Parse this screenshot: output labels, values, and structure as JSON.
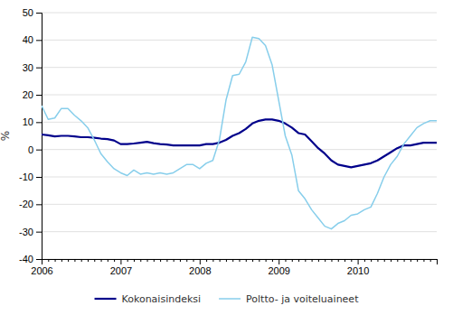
{
  "chart_data": {
    "type": "line",
    "ylabel": "%",
    "categories": [
      "2006",
      null,
      null,
      null,
      null,
      null,
      null,
      null,
      null,
      null,
      null,
      null,
      "2007",
      null,
      null,
      null,
      null,
      null,
      null,
      null,
      null,
      null,
      null,
      null,
      "2008",
      null,
      null,
      null,
      null,
      null,
      null,
      null,
      null,
      null,
      null,
      null,
      "2009",
      null,
      null,
      null,
      null,
      null,
      null,
      null,
      null,
      null,
      null,
      null,
      "2010",
      null,
      null,
      null,
      null,
      null,
      null,
      null,
      null,
      null,
      null,
      null,
      null
    ],
    "series": [
      {
        "name": "Kokonaisindeksi",
        "color": "#00008B",
        "values": [
          5.5,
          5.2,
          4.8,
          5.0,
          5.0,
          4.8,
          4.5,
          4.5,
          4.3,
          4.0,
          3.8,
          3.3,
          2.0,
          2.0,
          2.2,
          2.5,
          2.8,
          2.3,
          2.0,
          1.8,
          1.5,
          1.5,
          1.5,
          1.5,
          1.5,
          2.0,
          2.0,
          2.5,
          3.5,
          5.0,
          6.0,
          7.5,
          9.5,
          10.5,
          11.0,
          11.0,
          10.5,
          9.5,
          8.0,
          6.0,
          5.5,
          3.0,
          0.5,
          -1.5,
          -4.0,
          -5.5,
          -6.0,
          -6.5,
          -6.0,
          -5.5,
          -5.0,
          -4.0,
          -2.5,
          -1.0,
          0.5,
          1.5,
          1.5,
          2.0,
          2.5,
          2.5,
          2.5
        ]
      },
      {
        "name": "Poltto- ja voiteluaineet",
        "color": "#87CEEB",
        "values": [
          16.0,
          11.0,
          11.5,
          15.0,
          15.0,
          12.5,
          10.5,
          8.0,
          3.5,
          -1.5,
          -4.5,
          -7.0,
          -8.5,
          -9.5,
          -7.5,
          -9.0,
          -8.5,
          -9.0,
          -8.5,
          -9.0,
          -8.5,
          -7.0,
          -5.5,
          -5.5,
          -7.0,
          -5.0,
          -4.0,
          3.5,
          18.0,
          27.0,
          27.5,
          32.0,
          41.0,
          40.5,
          38.0,
          31.0,
          18.0,
          5.0,
          -2.0,
          -15.0,
          -18.0,
          -22.0,
          -25.0,
          -28.0,
          -29.0,
          -27.0,
          -26.0,
          -24.0,
          -23.5,
          -22.0,
          -21.0,
          -16.0,
          -10.0,
          -5.5,
          -2.5,
          2.0,
          5.0,
          8.0,
          9.5,
          10.5,
          10.5
        ]
      }
    ],
    "ylim": [
      -40,
      50
    ],
    "yticks": [
      -40,
      -30,
      -20,
      -10,
      0,
      10,
      20,
      30,
      40,
      50
    ],
    "grid": true,
    "legend": "bottom"
  }
}
